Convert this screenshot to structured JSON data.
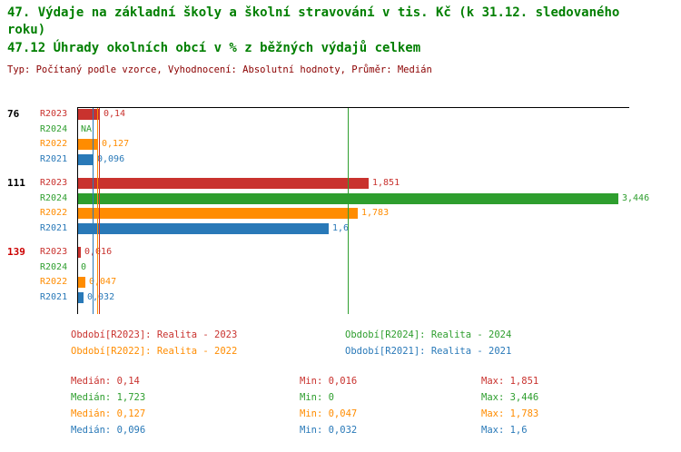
{
  "page": {
    "title": "47. Výdaje na základní školy a školní stravování v tis. Kč (k 31.12. sledovaného roku)",
    "subtitle": "47.12 Úhrady okolních obcí v % z běžných výdajů celkem",
    "meta": "Typ: Počítaný podle vzorce, Vyhodnocení: Absolutní hodnoty, Průměr: Medián"
  },
  "colors": {
    "title": "#007f00",
    "meta": "#8b0000",
    "axis": "#000000",
    "highlight_group": "#cc0000",
    "series": {
      "R2023": "#c9322e",
      "R2024": "#2e9e2e",
      "R2022": "#ff8c00",
      "R2021": "#2979b8"
    }
  },
  "chart_data": {
    "type": "bar",
    "orientation": "horizontal",
    "xlim": [
      0,
      3.52
    ],
    "grid": false,
    "series_order": [
      "R2023",
      "R2024",
      "R2022",
      "R2021"
    ],
    "groups": [
      {
        "label": "76",
        "highlight": false,
        "bars": [
          {
            "series": "R2023",
            "value": 0.14,
            "value_label": "0,14"
          },
          {
            "series": "R2024",
            "value": null,
            "value_label": "NA"
          },
          {
            "series": "R2022",
            "value": 0.127,
            "value_label": "0,127"
          },
          {
            "series": "R2021",
            "value": 0.096,
            "value_label": "0,096"
          }
        ]
      },
      {
        "label": "111",
        "highlight": false,
        "bars": [
          {
            "series": "R2023",
            "value": 1.851,
            "value_label": "1,851"
          },
          {
            "series": "R2024",
            "value": 3.446,
            "value_label": "3,446"
          },
          {
            "series": "R2022",
            "value": 1.783,
            "value_label": "1,783"
          },
          {
            "series": "R2021",
            "value": 1.6,
            "value_label": "1,6"
          }
        ]
      },
      {
        "label": "139",
        "highlight": true,
        "bars": [
          {
            "series": "R2023",
            "value": 0.016,
            "value_label": "0,016"
          },
          {
            "series": "R2024",
            "value": 0,
            "value_label": "0"
          },
          {
            "series": "R2022",
            "value": 0.047,
            "value_label": "0,047"
          },
          {
            "series": "R2021",
            "value": 0.032,
            "value_label": "0,032"
          }
        ]
      }
    ],
    "median_lines": [
      {
        "series": "R2023",
        "value": 0.14
      },
      {
        "series": "R2024",
        "value": 1.723
      },
      {
        "series": "R2022",
        "value": 0.127
      },
      {
        "series": "R2021",
        "value": 0.096
      }
    ]
  },
  "legend": [
    {
      "series": "R2023",
      "text": "Období[R2023]: Realita - 2023"
    },
    {
      "series": "R2024",
      "text": "Období[R2024]: Realita - 2024"
    },
    {
      "series": "R2022",
      "text": "Období[R2022]: Realita - 2022"
    },
    {
      "series": "R2021",
      "text": "Období[R2021]: Realita - 2021"
    }
  ],
  "stats": {
    "labels": {
      "median": "Medián",
      "min": "Min",
      "max": "Max"
    },
    "rows": [
      {
        "series": "R2023",
        "median": "0,14",
        "min": "0,016",
        "max": "1,851"
      },
      {
        "series": "R2024",
        "median": "1,723",
        "min": "0",
        "max": "3,446"
      },
      {
        "series": "R2022",
        "median": "0,127",
        "min": "0,047",
        "max": "1,783"
      },
      {
        "series": "R2021",
        "median": "0,096",
        "min": "0,032",
        "max": "1,6"
      }
    ]
  }
}
